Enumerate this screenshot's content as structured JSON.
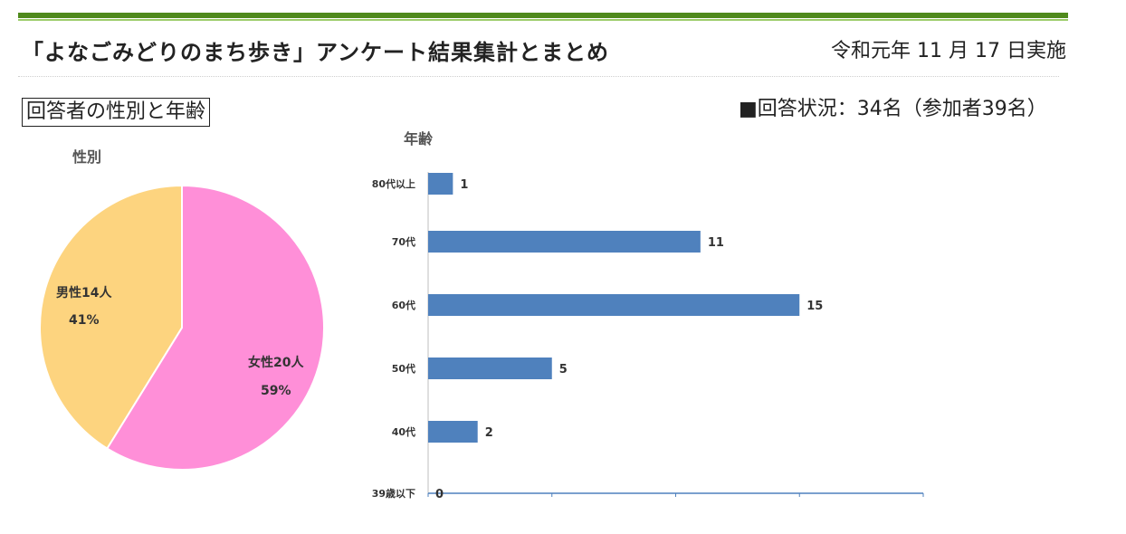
{
  "header": {
    "title": "「よなごみどりのまち歩き」アンケート結果集計とまとめ",
    "date": "令和元年 11 月 17 日実施"
  },
  "section_label": "回答者の性別と年齢",
  "status_text": "■回答状況：34名（参加者39名）",
  "colors": {
    "male": "#fdd47f",
    "female": "#ff8fd8",
    "bar": "#4f81bd",
    "axis": "#4f81bd",
    "header_bar": "#4f8a1c"
  },
  "chart_data": [
    {
      "type": "pie",
      "title": "性別",
      "categories": [
        "男性14人",
        "女性20人"
      ],
      "values": [
        14,
        20
      ],
      "percent_labels": [
        "41%",
        "59%"
      ],
      "colors": [
        "#fdd47f",
        "#ff8fd8"
      ]
    },
    {
      "type": "bar",
      "orientation": "horizontal",
      "title": "年齢",
      "categories": [
        "80代以上",
        "70代",
        "60代",
        "50代",
        "40代",
        "39歳以下"
      ],
      "values": [
        1,
        11,
        15,
        5,
        2,
        0
      ],
      "xlim": [
        0,
        20
      ],
      "color": "#4f81bd"
    }
  ]
}
